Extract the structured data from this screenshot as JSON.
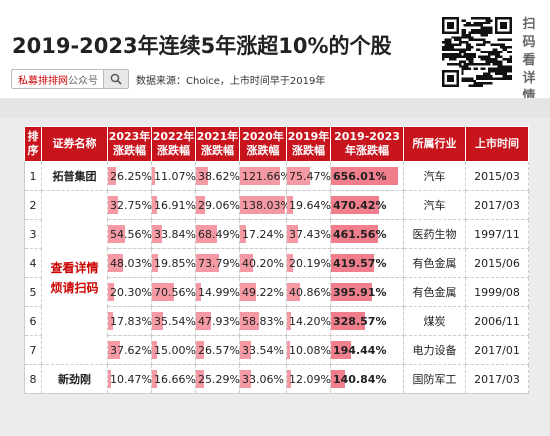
{
  "title": "2019-2023年连续5年涨超10%的个股",
  "search": {
    "brand": "私募排排网",
    "suffix": "公众号"
  },
  "source": "数据来源：Choice，上市时间早于2019年",
  "side_text": [
    "扫",
    "码",
    "看",
    "详",
    "情"
  ],
  "table": {
    "headers": [
      "排序",
      "证券名称",
      "2023年涨跌幅",
      "2022年涨跌幅",
      "2021年涨跌幅",
      "2020年涨跌幅",
      "2019年涨跌幅",
      "2019-2023年涨跌幅",
      "所属行业",
      "上市时间"
    ],
    "merged_name": [
      "查看详情",
      "烦请扫码"
    ],
    "rows": [
      {
        "rank": "1",
        "name": "拓普集团",
        "y2023": "26.25%",
        "y2022": "11.07%",
        "y2021": "38.62%",
        "y2020": "121.66%",
        "y2019": "75.47%",
        "total": "656.01%",
        "industry": "汽车",
        "listed": "2015/03"
      },
      {
        "rank": "2",
        "name": "",
        "y2023": "32.75%",
        "y2022": "16.91%",
        "y2021": "29.06%",
        "y2020": "138.03%",
        "y2019": "19.64%",
        "total": "470.42%",
        "industry": "汽车",
        "listed": "2017/03"
      },
      {
        "rank": "3",
        "name": "",
        "y2023": "54.56%",
        "y2022": "33.84%",
        "y2021": "68.49%",
        "y2020": "17.24%",
        "y2019": "37.43%",
        "total": "461.56%",
        "industry": "医药生物",
        "listed": "1997/11"
      },
      {
        "rank": "4",
        "name": "",
        "y2023": "48.03%",
        "y2022": "19.85%",
        "y2021": "73.79%",
        "y2020": "40.20%",
        "y2019": "20.19%",
        "total": "419.57%",
        "industry": "有色金属",
        "listed": "2015/06"
      },
      {
        "rank": "5",
        "name": "",
        "y2023": "20.30%",
        "y2022": "70.56%",
        "y2021": "14.99%",
        "y2020": "49.22%",
        "y2019": "40.86%",
        "total": "395.91%",
        "industry": "有色金属",
        "listed": "1999/08"
      },
      {
        "rank": "6",
        "name": "",
        "y2023": "17.83%",
        "y2022": "35.54%",
        "y2021": "47.93%",
        "y2020": "58.83%",
        "y2019": "14.20%",
        "total": "328.57%",
        "industry": "煤炭",
        "listed": "2006/11"
      },
      {
        "rank": "7",
        "name": "",
        "y2023": "37.62%",
        "y2022": "15.00%",
        "y2021": "26.57%",
        "y2020": "33.54%",
        "y2019": "10.08%",
        "total": "194.44%",
        "industry": "电力设备",
        "listed": "2017/01"
      },
      {
        "rank": "8",
        "name": "新劲刚",
        "y2023": "10.47%",
        "y2022": "16.66%",
        "y2021": "25.29%",
        "y2020": "33.06%",
        "y2019": "12.09%",
        "total": "140.84%",
        "industry": "国防军工",
        "listed": "2017/03"
      }
    ]
  },
  "colors": {
    "header_red": "#c8141d",
    "bar_pink": "#f59aa4",
    "total_pink": "#f07e8c",
    "brand_red": "#cc0000"
  }
}
